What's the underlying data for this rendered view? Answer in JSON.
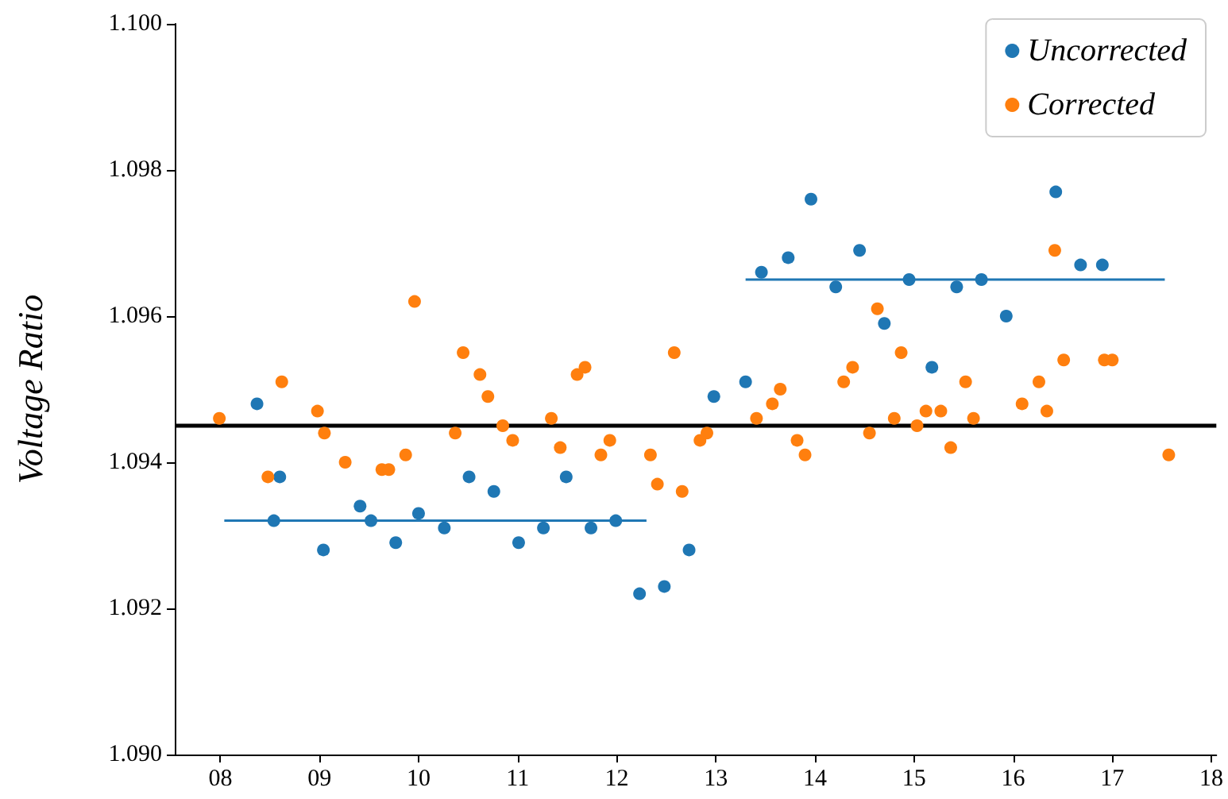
{
  "chart_data": {
    "type": "scatter",
    "ylabel": "Voltage Ratio",
    "marker": "circle",
    "grid": false,
    "legend": "top right",
    "xlim": [
      7.54,
      18.05
    ],
    "xticks": [
      {
        "value": 8,
        "label": "08"
      },
      {
        "value": 9,
        "label": "09"
      },
      {
        "value": 10,
        "label": "10"
      },
      {
        "value": 11,
        "label": "11"
      },
      {
        "value": 12,
        "label": "12"
      },
      {
        "value": 13,
        "label": "13"
      },
      {
        "value": 14,
        "label": "14"
      },
      {
        "value": 15,
        "label": "15"
      },
      {
        "value": 16,
        "label": "16"
      },
      {
        "value": 17,
        "label": "17"
      },
      {
        "value": 18,
        "label": "18"
      }
    ],
    "ylim": [
      1.09,
      1.1
    ],
    "yticks": [
      {
        "value": 1.09,
        "label": "1.090"
      },
      {
        "value": 1.092,
        "label": "1.092"
      },
      {
        "value": 1.094,
        "label": "1.094"
      },
      {
        "value": 1.096,
        "label": "1.096"
      },
      {
        "value": 1.098,
        "label": "1.098"
      },
      {
        "value": 1.1,
        "label": "1.100"
      }
    ],
    "ref_lines": [
      {
        "axis": "y",
        "value": 1.0945,
        "color": "#000000"
      }
    ],
    "series": [
      {
        "name": "Uncorrected",
        "color": "#1f77b4",
        "x": [
          8.37,
          8.54,
          8.6,
          9.04,
          9.41,
          9.52,
          9.77,
          10.0,
          10.26,
          10.51,
          10.76,
          11.01,
          11.26,
          11.49,
          11.74,
          11.99,
          12.23,
          12.48,
          12.73,
          12.98,
          13.3,
          13.46,
          13.73,
          13.96,
          14.21,
          14.45,
          14.7,
          14.95,
          15.18,
          15.43,
          15.68,
          15.93,
          16.43,
          16.68,
          16.9
        ],
        "values": [
          1.0948,
          1.0932,
          1.0938,
          1.0928,
          1.0934,
          1.0932,
          1.0929,
          1.0933,
          1.0931,
          1.0938,
          1.0936,
          1.0929,
          1.0931,
          1.0938,
          1.0931,
          1.0932,
          1.0922,
          1.0923,
          1.0928,
          1.0949,
          1.0951,
          1.0966,
          1.0968,
          1.0976,
          1.0964,
          1.0969,
          1.0959,
          1.0965,
          1.0953,
          1.0964,
          1.0965,
          1.096,
          1.0977,
          1.0967,
          1.0967
        ]
      },
      {
        "name": "Corrected",
        "color": "#ff7f0e",
        "x": [
          7.99,
          8.48,
          8.62,
          8.98,
          9.05,
          9.26,
          9.63,
          9.7,
          9.87,
          9.96,
          10.37,
          10.45,
          10.62,
          10.7,
          10.85,
          10.95,
          11.34,
          11.43,
          11.6,
          11.68,
          11.84,
          11.93,
          12.34,
          12.41,
          12.58,
          12.66,
          12.84,
          12.91,
          13.41,
          13.57,
          13.65,
          13.82,
          13.9,
          14.29,
          14.38,
          14.55,
          14.63,
          14.8,
          14.87,
          15.03,
          15.12,
          15.27,
          15.37,
          15.52,
          15.6,
          16.09,
          16.26,
          16.34,
          16.42,
          16.51,
          16.92,
          17.0,
          17.57
        ],
        "values": [
          1.0946,
          1.0938,
          1.0951,
          1.0947,
          1.0944,
          1.094,
          1.0939,
          1.0939,
          1.0941,
          1.0962,
          1.0944,
          1.0955,
          1.0952,
          1.0949,
          1.0945,
          1.0943,
          1.0946,
          1.0942,
          1.0952,
          1.0953,
          1.0941,
          1.0943,
          1.0941,
          1.0937,
          1.0955,
          1.0936,
          1.0943,
          1.0944,
          1.0946,
          1.0948,
          1.095,
          1.0943,
          1.0941,
          1.0951,
          1.0953,
          1.0944,
          1.0961,
          1.0946,
          1.0955,
          1.0945,
          1.0947,
          1.0947,
          1.0942,
          1.0951,
          1.0946,
          1.0948,
          1.0951,
          1.0947,
          1.0969,
          1.0954,
          1.0954,
          1.0954,
          1.0941
        ]
      },
      {
        "type": "line",
        "color": "#1f77b4",
        "marker": "none",
        "x": [
          8.04,
          12.3
        ],
        "values": [
          1.0932,
          1.0932
        ]
      },
      {
        "type": "line",
        "color": "#1f77b4",
        "marker": "none",
        "x": [
          13.3,
          17.53
        ],
        "values": [
          1.0965,
          1.0965
        ]
      }
    ]
  }
}
